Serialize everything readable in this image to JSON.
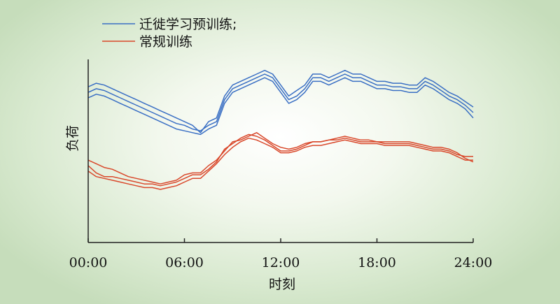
{
  "chart_data": {
    "type": "line",
    "xlabel": "时刻",
    "ylabel": "负荷",
    "x_tick_labels": [
      "00:00",
      "06:00",
      "12:00",
      "18:00",
      "24:00"
    ],
    "x_ticks_hours": [
      0,
      6,
      12,
      18,
      24
    ],
    "xlim": [
      0,
      24
    ],
    "ylim": [
      0,
      100
    ],
    "grid": false,
    "legend_position": "top-left",
    "legend": [
      {
        "label": "迁徙学习预训练;",
        "color": "#3a6fc4"
      },
      {
        "label": "常规训练",
        "color": "#d9482b"
      }
    ],
    "x": [
      0,
      0.5,
      1,
      1.5,
      2,
      2.5,
      3,
      3.5,
      4,
      4.5,
      5,
      5.5,
      6,
      6.5,
      7,
      7.5,
      8,
      8.5,
      9,
      9.5,
      10,
      10.5,
      11,
      11.5,
      12,
      12.5,
      13,
      13.5,
      14,
      14.5,
      15,
      15.5,
      16,
      16.5,
      17,
      17.5,
      18,
      18.5,
      19,
      19.5,
      20,
      20.5,
      21,
      21.5,
      22,
      22.5,
      23,
      23.5,
      24
    ],
    "series": [
      {
        "group": "迁徙学习预训练;",
        "color": "#3a6fc4",
        "values": [
          85,
          87,
          86,
          84,
          82,
          80,
          78,
          76,
          74,
          72,
          70,
          68,
          66,
          64,
          60,
          66,
          68,
          80,
          86,
          88,
          90,
          92,
          94,
          92,
          86,
          80,
          83,
          86,
          92,
          92,
          90,
          92,
          94,
          92,
          92,
          90,
          88,
          88,
          87,
          87,
          86,
          86,
          90,
          88,
          85,
          82,
          80,
          77,
          74
        ]
      },
      {
        "group": "迁徙学习预训练;",
        "color": "#3a6fc4",
        "values": [
          82,
          84,
          83,
          81,
          79,
          77,
          75,
          73,
          71,
          69,
          67,
          65,
          64,
          62,
          61,
          64,
          66,
          78,
          84,
          86,
          88,
          90,
          92,
          90,
          84,
          78,
          80,
          84,
          90,
          90,
          88,
          90,
          92,
          90,
          90,
          88,
          86,
          86,
          85,
          85,
          84,
          84,
          88,
          86,
          83,
          80,
          78,
          75,
          71
        ]
      },
      {
        "group": "迁徙学习预训练;",
        "color": "#3a6fc4",
        "values": [
          79,
          81,
          80,
          78,
          76,
          74,
          72,
          70,
          68,
          66,
          64,
          62,
          61,
          60,
          59,
          62,
          64,
          76,
          82,
          84,
          86,
          88,
          90,
          88,
          82,
          76,
          78,
          82,
          88,
          88,
          86,
          88,
          90,
          88,
          88,
          86,
          84,
          84,
          83,
          83,
          82,
          82,
          86,
          84,
          81,
          78,
          76,
          73,
          68
        ]
      },
      {
        "group": "常规训练",
        "color": "#d9482b",
        "values": [
          45,
          43,
          41,
          40,
          38,
          36,
          35,
          34,
          33,
          32,
          33,
          34,
          37,
          38,
          38,
          42,
          45,
          50,
          55,
          56,
          58,
          60,
          57,
          54,
          52,
          51,
          52,
          54,
          55,
          55,
          56,
          57,
          58,
          57,
          56,
          56,
          55,
          55,
          55,
          55,
          55,
          54,
          53,
          52,
          52,
          51,
          49,
          46,
          44
        ]
      },
      {
        "group": "常规训练",
        "color": "#d9482b",
        "values": [
          42,
          38,
          36,
          36,
          35,
          34,
          33,
          32,
          32,
          31,
          32,
          33,
          35,
          37,
          37,
          40,
          44,
          51,
          54,
          57,
          59,
          58,
          56,
          53,
          50,
          50,
          51,
          53,
          55,
          55,
          56,
          56,
          57,
          56,
          55,
          55,
          55,
          54,
          54,
          54,
          54,
          53,
          52,
          51,
          51,
          50,
          48,
          47,
          47
        ]
      },
      {
        "group": "常规训练",
        "color": "#d9482b",
        "values": [
          39,
          36,
          35,
          34,
          33,
          32,
          31,
          30,
          30,
          29,
          30,
          31,
          33,
          35,
          35,
          39,
          43,
          48,
          52,
          55,
          57,
          56,
          54,
          52,
          49,
          49,
          50,
          52,
          53,
          53,
          54,
          55,
          56,
          55,
          54,
          54,
          54,
          53,
          53,
          53,
          53,
          52,
          51,
          50,
          50,
          49,
          47,
          45,
          45
        ]
      }
    ]
  }
}
